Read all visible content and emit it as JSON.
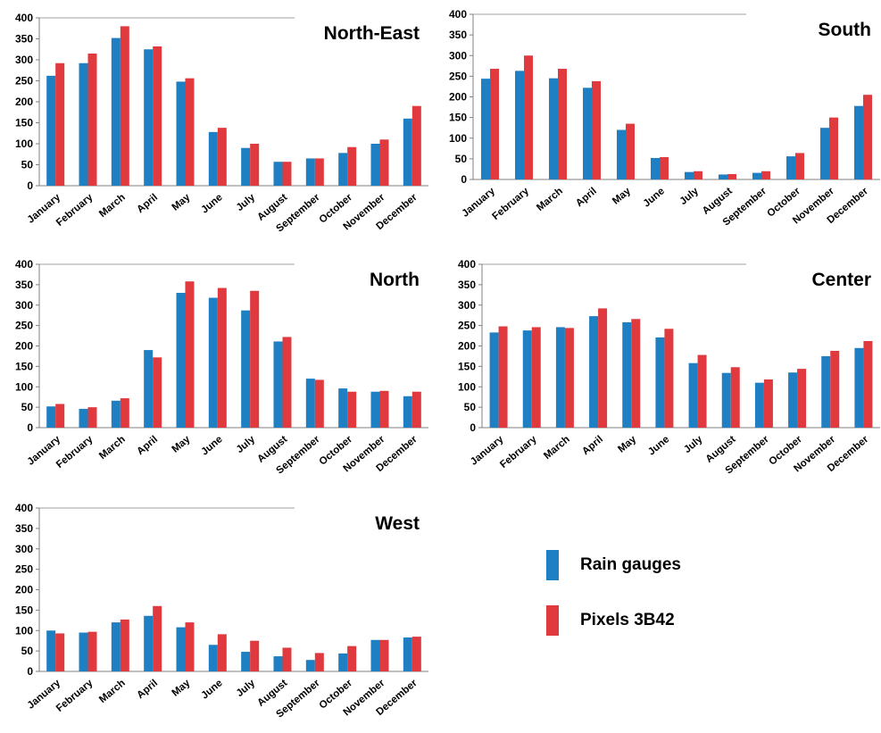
{
  "colors": {
    "rain_gauges": "#1f7fc3",
    "pixels_3b42": "#e0393e",
    "axis": "#808080"
  },
  "legend": [
    {
      "label": "Rain gauges",
      "color": "#1f7fc3"
    },
    {
      "label": "Pixels 3B42",
      "color": "#e0393e"
    }
  ],
  "chart_data": [
    {
      "type": "bar",
      "title": "North-East",
      "categories": [
        "January",
        "February",
        "March",
        "April",
        "May",
        "June",
        "July",
        "August",
        "September",
        "October",
        "November",
        "December"
      ],
      "ylim": [
        0,
        400
      ],
      "yticks": [
        0,
        50,
        100,
        150,
        200,
        250,
        300,
        350,
        400
      ],
      "series": [
        {
          "name": "Rain gauges",
          "values": [
            262,
            292,
            352,
            325,
            248,
            128,
            90,
            57,
            65,
            78,
            100,
            160
          ]
        },
        {
          "name": "Pixels 3B42",
          "values": [
            292,
            315,
            380,
            332,
            256,
            138,
            100,
            57,
            65,
            92,
            110,
            190
          ]
        }
      ]
    },
    {
      "type": "bar",
      "title": "South",
      "categories": [
        "January",
        "February",
        "March",
        "April",
        "May",
        "June",
        "July",
        "August",
        "September",
        "October",
        "November",
        "December"
      ],
      "ylim": [
        0,
        400
      ],
      "yticks": [
        0,
        50,
        100,
        150,
        200,
        250,
        300,
        350,
        400
      ],
      "series": [
        {
          "name": "Rain gauges",
          "values": [
            244,
            263,
            245,
            222,
            120,
            52,
            18,
            12,
            16,
            56,
            125,
            178
          ]
        },
        {
          "name": "Pixels 3B42",
          "values": [
            268,
            300,
            268,
            238,
            135,
            54,
            20,
            13,
            20,
            64,
            150,
            205
          ]
        }
      ]
    },
    {
      "type": "bar",
      "title": "North",
      "categories": [
        "January",
        "February",
        "March",
        "April",
        "May",
        "June",
        "July",
        "August",
        "September",
        "October",
        "November",
        "December"
      ],
      "ylim": [
        0,
        400
      ],
      "yticks": [
        0,
        50,
        100,
        150,
        200,
        250,
        300,
        350,
        400
      ],
      "series": [
        {
          "name": "Rain gauges",
          "values": [
            52,
            46,
            66,
            190,
            330,
            318,
            287,
            211,
            120,
            96,
            88,
            77
          ]
        },
        {
          "name": "Pixels 3B42",
          "values": [
            58,
            50,
            72,
            172,
            358,
            342,
            335,
            222,
            117,
            88,
            90,
            88
          ]
        }
      ]
    },
    {
      "type": "bar",
      "title": "Center",
      "categories": [
        "January",
        "February",
        "March",
        "April",
        "May",
        "June",
        "July",
        "August",
        "September",
        "October",
        "November",
        "December"
      ],
      "ylim": [
        0,
        400
      ],
      "yticks": [
        0,
        50,
        100,
        150,
        200,
        250,
        300,
        350,
        400
      ],
      "series": [
        {
          "name": "Rain gauges",
          "values": [
            233,
            238,
            246,
            273,
            258,
            221,
            158,
            134,
            110,
            135,
            175,
            195
          ]
        },
        {
          "name": "Pixels 3B42",
          "values": [
            248,
            246,
            244,
            292,
            266,
            242,
            178,
            148,
            118,
            144,
            188,
            212
          ]
        }
      ]
    },
    {
      "type": "bar",
      "title": "West",
      "categories": [
        "January",
        "February",
        "March",
        "April",
        "May",
        "June",
        "July",
        "August",
        "September",
        "October",
        "November",
        "December"
      ],
      "ylim": [
        0,
        400
      ],
      "yticks": [
        0,
        50,
        100,
        150,
        200,
        250,
        300,
        350,
        400
      ],
      "series": [
        {
          "name": "Rain gauges",
          "values": [
            100,
            95,
            120,
            136,
            108,
            65,
            48,
            37,
            28,
            44,
            77,
            83
          ]
        },
        {
          "name": "Pixels 3B42",
          "values": [
            93,
            97,
            127,
            160,
            120,
            91,
            75,
            58,
            45,
            62,
            77,
            85
          ]
        }
      ]
    }
  ]
}
